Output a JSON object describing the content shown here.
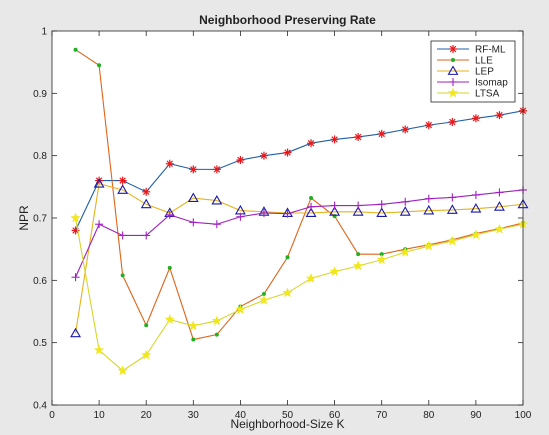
{
  "chart_data": {
    "type": "line",
    "title": "Neighborhood Preserving Rate",
    "xlabel": "Neighborhood-Size K",
    "ylabel": "NPR",
    "xlim": [
      0,
      100
    ],
    "ylim": [
      0.4,
      1
    ],
    "xticks": [
      0,
      10,
      20,
      30,
      40,
      50,
      60,
      70,
      80,
      90,
      100
    ],
    "yticks": [
      0.4,
      0.5,
      0.6,
      0.7,
      0.8,
      0.9,
      1
    ],
    "xtick_labels": [
      "0",
      "10",
      "20",
      "30",
      "40",
      "50",
      "60",
      "70",
      "80",
      "90",
      "100"
    ],
    "ytick_labels": [
      "0.4",
      "0.5",
      "0.6",
      "0.7",
      "0.8",
      "0.9",
      "1"
    ],
    "grid": false,
    "legend_position": "top-right",
    "x": [
      5,
      10,
      15,
      20,
      25,
      30,
      35,
      40,
      45,
      50,
      55,
      60,
      65,
      70,
      75,
      80,
      85,
      90,
      95,
      100
    ],
    "series": [
      {
        "name": "RF-ML",
        "color": "#1f5fa8",
        "marker": "asterisk",
        "marker_color": "#e8191c",
        "values": [
          0.68,
          0.76,
          0.76,
          0.742,
          0.787,
          0.778,
          0.778,
          0.793,
          0.8,
          0.805,
          0.82,
          0.826,
          0.83,
          0.835,
          0.842,
          0.849,
          0.854,
          0.86,
          0.865,
          0.872
        ]
      },
      {
        "name": "LLE",
        "color": "#e0641a",
        "marker": "dot",
        "marker_color": "#22b022",
        "values": [
          0.97,
          0.945,
          0.608,
          0.528,
          0.62,
          0.505,
          0.513,
          0.558,
          0.578,
          0.637,
          0.732,
          0.703,
          0.642,
          0.642,
          0.65,
          0.657,
          0.665,
          0.675,
          0.683,
          0.692
        ]
      },
      {
        "name": "LEP",
        "color": "#e8b21a",
        "marker": "triangle",
        "marker_color": "#1a1aa8",
        "values": [
          0.515,
          0.755,
          0.745,
          0.722,
          0.708,
          0.732,
          0.728,
          0.712,
          0.71,
          0.708,
          0.708,
          0.71,
          0.71,
          0.708,
          0.71,
          0.712,
          0.713,
          0.715,
          0.718,
          0.722
        ]
      },
      {
        "name": "Isomap",
        "color": "#a020c0",
        "marker": "plus",
        "marker_color": "#a020c0",
        "values": [
          0.605,
          0.69,
          0.672,
          0.672,
          0.705,
          0.693,
          0.69,
          0.702,
          0.708,
          0.707,
          0.718,
          0.72,
          0.72,
          0.722,
          0.726,
          0.731,
          0.733,
          0.737,
          0.741,
          0.745
        ]
      },
      {
        "name": "LTSA",
        "color": "#d6d62a",
        "marker": "star",
        "marker_color": "#f0e81a",
        "values": [
          0.7,
          0.488,
          0.455,
          0.48,
          0.537,
          0.527,
          0.535,
          0.553,
          0.568,
          0.58,
          0.603,
          0.614,
          0.623,
          0.633,
          0.645,
          0.655,
          0.663,
          0.673,
          0.682,
          0.69
        ]
      }
    ]
  }
}
